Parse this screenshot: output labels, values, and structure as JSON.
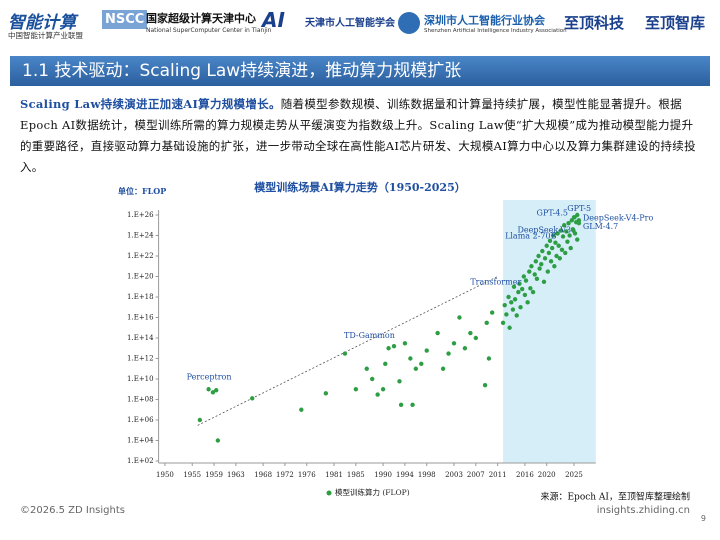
{
  "header": {
    "logos": [
      "智能计算",
      "中国智能计算产业联盟",
      "NSCC",
      "国家超级计算天津中心",
      "National SuperComputer Center in Tianjin",
      "天津市人工智能学会",
      "深圳市人工智能行业协会",
      "Shenzhen Artificial Intelligence Industry Association",
      "至顶科技",
      "至顶智库"
    ]
  },
  "title": "1.1 技术驱动：Scaling Law持续演进，推动算力规模扩张",
  "paragraph": {
    "lead": "Scaling Law持续演进正加速AI算力规模增长。",
    "body": "随着模型参数规模、训练数据量和计算量持续扩展，模型性能显著提升。根据Epoch AI数据统计，模型训练所需的算力规模走势从平缓演变为指数级上升。Scaling Law使“扩大规模”成为推动模型能力提升的重要路径，直接驱动算力基础设施的扩张，进一步带动全球在高性能AI芯片研发、大规模AI算力中心以及算力集群建设的持续投入。"
  },
  "chart_data": {
    "type": "scatter",
    "title": "模型训练场景AI算力走势（1950-2025）",
    "unit": "单位：FLOP",
    "log_y": true,
    "color": "#2e9e44",
    "series": [
      {
        "name": "模型训练算力 (FLOP)",
        "color": "#2e9e44",
        "x": [
          1956.4,
          1958.8,
          1959.4,
          1959.7,
          1966,
          1975,
          1979.5,
          1983,
          1985,
          1987,
          1988,
          1989,
          1990,
          1990.4,
          1991,
          1993,
          1993.3,
          1994,
          1995,
          1995.4,
          1996,
          1997,
          1998,
          2000,
          2001,
          2002,
          2003,
          2004,
          2005,
          2006,
          2007,
          2008.7,
          2009,
          2009.4,
          2010,
          2012,
          2012.3,
          2012.6,
          2013,
          2013.2,
          2013.5,
          2013.8,
          2014,
          2014.2,
          2014.5,
          2014.8,
          2015,
          2015.2,
          2015.5,
          2015.8,
          2016,
          2016.2,
          2016.5,
          2016.8,
          2017.2,
          2017.5,
          2017.8,
          2018,
          2018.2,
          2018.5,
          2018.7,
          2019,
          2019.2,
          2019.5,
          2019.7,
          2020,
          2020.2,
          2020.4,
          2020.6,
          2020.8,
          2021,
          2021.2,
          2021.4,
          2021.6,
          2021.8,
          2022,
          2022.2,
          2022.4,
          2022.6,
          2022.8,
          2023.2,
          2023.4,
          2023.6,
          2023.8,
          2024,
          2024.2,
          2024.4,
          2024.6,
          2024.8,
          2025,
          2025.2,
          2025.4,
          2025.6
        ],
        "values": [
          1000000.0,
          500000000.0,
          800000000.0,
          10000.0,
          130000000.0,
          10000000.0,
          400000000.0,
          3000000000000.0,
          1000000000.0,
          100000000000.0,
          10000000000.0,
          300000000.0,
          1000000000.0,
          300000000000.0,
          10000000000000.0,
          6000000000.0,
          30000000.0,
          30000000000000.0,
          1000000000000.0,
          30000000.0,
          100000000000.0,
          300000000000.0,
          6000000000000.0,
          300000000000000.0,
          100000000000.0,
          3000000000000.0,
          30000000000000.0,
          1e+16,
          10000000000000.0,
          300000000000000.0,
          100000000000000.0,
          2500000000.0,
          3000000000000000.0,
          1000000000000.0,
          3e+16,
          3000000000000000.0,
          1.6e+17,
          2e+16,
          1e+18,
          1000000000000000.0,
          3e+17,
          6e+16,
          1e+19,
          6e+17,
          1.6e+16,
          3e+18,
          2e+19,
          1e+17,
          6e+18,
          1e+20,
          1.6e+18,
          4e+19,
          3e+17,
          3e+20,
          1e+21,
          3e+18,
          1.6e+20,
          3e+21,
          6e+19,
          1e+22,
          6e+20,
          1.6e+21,
          3e+22,
          3e+19,
          6e+21,
          1e+23,
          3e+20,
          2e+22,
          3e+23,
          3e+21,
          6e+22,
          1e+24,
          1e+21,
          2e+23,
          1e+22,
          1.6e+24,
          1e+23,
          6e+21,
          3e+24,
          4e+22,
          1e+25,
          2e+22,
          2.5e+24,
          2.5e+23,
          1.6e+25,
          1e+24,
          6e+22,
          3e+25,
          4e+24,
          6e+25,
          1.6e+24,
          2e+25,
          4e+23
        ]
      }
    ],
    "annotations": [
      {
        "text": "Perceptron",
        "x": 1958,
        "y": 1000000000.0
      },
      {
        "text": "TD-Gammon",
        "x": 1992,
        "y": 16000000000000.0
      },
      {
        "text": "Transformer",
        "x": 2017,
        "y": 7e+18
      },
      {
        "text": "Llama 2-70B",
        "x": 2023,
        "y": 8e+23
      },
      {
        "text": "DeepSeek-V3",
        "x": 2024.9,
        "y": 3e+24
      },
      {
        "text": "GPT-4.5",
        "x": 2025.1,
        "y": 6e+25
      },
      {
        "text": "GPT-5",
        "x": 2025.6,
        "y": 1e+26
      },
      {
        "text": "DeepSeek-V4-Pro",
        "x": 2025.9,
        "y": 3e+25
      },
      {
        "text": "GLM-4.7",
        "x": 2025.9,
        "y": 1.6e+25
      }
    ],
    "trend_line": {
      "x": [
        1956,
        2011
      ],
      "y": [
        300000.0,
        1e+20
      ]
    },
    "highlight_span": [
      2012,
      2029
    ],
    "xlim": [
      1947,
      2029
    ],
    "ylim": [
      100.0,
      1e+26
    ],
    "xticks": [
      1950,
      1955,
      1959,
      1963,
      1968,
      1972,
      1976,
      1981,
      1985,
      1990,
      1994,
      1998,
      2003,
      2007,
      2011,
      2016,
      2020,
      2025
    ],
    "yticks": [
      {
        "value": 100.0,
        "label": "1.E+02"
      },
      {
        "value": 10000.0,
        "label": "1.E+04"
      },
      {
        "value": 1000000.0,
        "label": "1.E+06"
      },
      {
        "value": 100000000.0,
        "label": "1.E+08"
      },
      {
        "value": 10000000000.0,
        "label": "1.E+10"
      },
      {
        "value": 1000000000000.0,
        "label": "1.E+12"
      },
      {
        "value": 100000000000000.0,
        "label": "1.E+14"
      },
      {
        "value": 1e+16,
        "label": "1.E+16"
      },
      {
        "value": 1e+18,
        "label": "1.E+18"
      },
      {
        "value": 1e+20,
        "label": "1.E+20"
      },
      {
        "value": 1e+22,
        "label": "1.E+22"
      },
      {
        "value": 1e+24,
        "label": "1.E+24"
      },
      {
        "value": 1e+26,
        "label": "1.E+26"
      }
    ],
    "legend": "bottom",
    "source": "来源：Epoch AI，至顶智库整理绘制"
  },
  "footer": {
    "left": "©2026.5 ZD Insights",
    "right": "insights.zhiding.cn",
    "page": "9"
  }
}
